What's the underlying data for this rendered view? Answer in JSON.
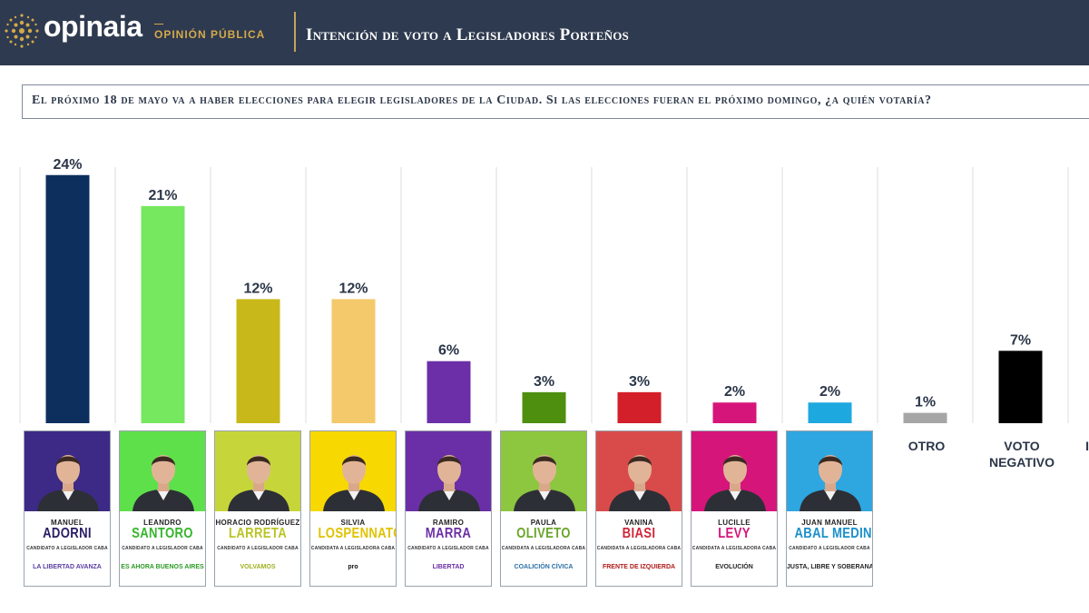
{
  "header": {
    "logo_text": "opinaia",
    "logo_subtitle": "OPINIÓN PÚBLICA",
    "title": "Intención de voto a Legisladores Porteños"
  },
  "question": "El próximo 18 de mayo va a haber elecciones para elegir legisladores de la Ciudad. Si las elecciones fueran el próximo domingo, ¿a quién votaría?",
  "chart_data": {
    "type": "bar",
    "title": "Intención de voto a Legisladores Porteños",
    "categories": [
      "Adorni",
      "Santoro",
      "Larreta",
      "Lospennato",
      "Marra",
      "Oliveto",
      "Biasi",
      "Levy",
      "Abal Medina",
      "Otro",
      "Voto negativo"
    ],
    "values": [
      24,
      21,
      12,
      12,
      6,
      3,
      3,
      2,
      2,
      1,
      7
    ],
    "value_labels": [
      "24%",
      "21%",
      "12%",
      "12%",
      "6%",
      "3%",
      "3%",
      "2%",
      "2%",
      "1%",
      "7%"
    ],
    "colors": [
      "#0d2f5e",
      "#76e860",
      "#c8b81a",
      "#f3c96b",
      "#6c2fa8",
      "#4f8f10",
      "#d21f2a",
      "#d6157a",
      "#1ea8e0",
      "#a6a6a6",
      "#000000"
    ],
    "ylim": [
      0,
      26
    ],
    "grid": "vertical separators",
    "legend": "none",
    "xlabel": "",
    "ylabel": ""
  },
  "candidates": [
    {
      "first": "MANUEL",
      "last": "ADORNI",
      "role": "CANDIDATO A LEGISLADOR CABA",
      "party": "LA LIBERTAD AVANZA",
      "band": "#3c2a86",
      "last_color": "#2a1d66",
      "party_color": "#5a3ea0"
    },
    {
      "first": "LEANDRO",
      "last": "SANTORO",
      "role": "CANDIDATO A LEGISLADOR CABA",
      "party": "ES AHORA BUENOS AIRES",
      "band": "#5ee04a",
      "last_color": "#35b52c",
      "party_color": "#2d9a25"
    },
    {
      "first": "HORACIO RODRÍGUEZ",
      "last": "LARRETA",
      "role": "CANDIDATO A LEGISLADOR CABA",
      "party": "VOLVAMOS",
      "band": "#c6d63a",
      "last_color": "#b9c424",
      "party_color": "#9fb01c"
    },
    {
      "first": "SILVIA",
      "last": "LOSPENNATO",
      "role": "CANDIDATA A LEGISLADORA CABA",
      "party": "pro",
      "band": "#f7d800",
      "last_color": "#e0c200",
      "party_color": "#111111"
    },
    {
      "first": "RAMIRO",
      "last": "MARRA",
      "role": "CANDIDATO A LEGISLADOR CABA",
      "party": "LIBERTAD",
      "band": "#6a2fa6",
      "last_color": "#6a2fa6",
      "party_color": "#6a2fa6"
    },
    {
      "first": "PAULA",
      "last": "OLIVETO",
      "role": "CANDIDATA A LEGISLADORA CABA",
      "party": "COALICIÓN CÍVICA",
      "band": "#8dc63f",
      "last_color": "#6aa52a",
      "party_color": "#2a6fa8"
    },
    {
      "first": "VANINA",
      "last": "BIASI",
      "role": "CANDIDATA A LEGISLADORA CABA",
      "party": "FRENTE DE IZQUIERDA",
      "band": "#d94b4b",
      "last_color": "#d0263a",
      "party_color": "#b01a1a"
    },
    {
      "first": "LUCILLE",
      "last": "LEVY",
      "role": "CANDIDATA A LEGISLADORA CABA",
      "party": "EVOLUCIÓN",
      "band": "#d6157a",
      "last_color": "#d6157a",
      "party_color": "#222222"
    },
    {
      "first": "JUAN MANUEL",
      "last": "ABAL MEDINA",
      "role": "CANDIDATO A LEGISLADOR CABA",
      "party": "JUSTA, LIBRE Y SOBERANA",
      "band": "#2ea6e0",
      "last_color": "#1a8fcb",
      "party_color": "#222222"
    }
  ],
  "extra_labels": {
    "otro": "OTRO",
    "voto_negativo_line1": "VOTO",
    "voto_negativo_line2": "NEGATIVO",
    "cut_off": "I"
  }
}
